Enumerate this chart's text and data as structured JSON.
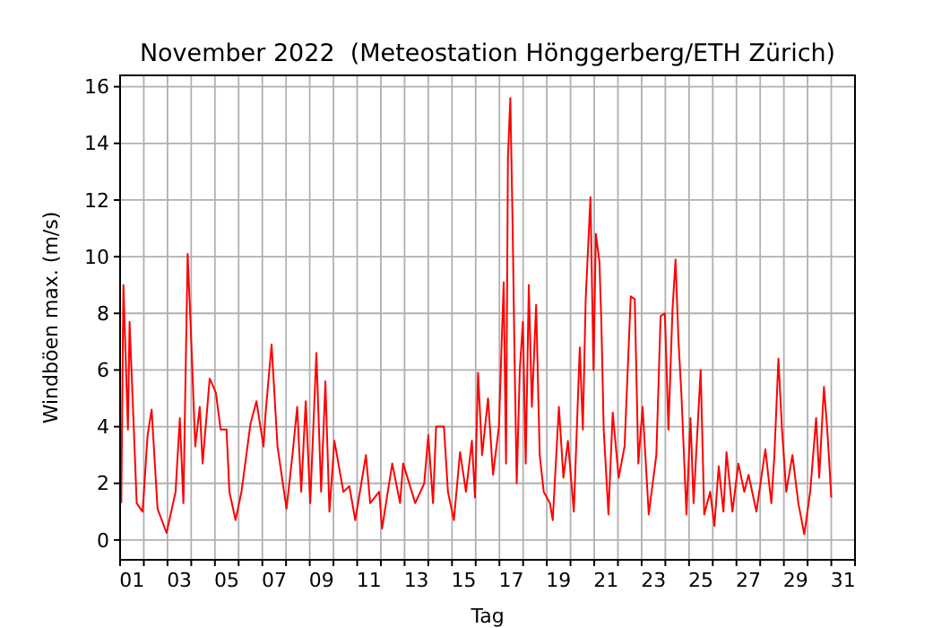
{
  "chart_data": {
    "type": "line",
    "title": "November 2022  (Meteostation Hönggerberg/ETH Zürich)",
    "xlabel": "Tag",
    "ylabel": "Windböen max. (m/s)",
    "xlim": [
      1,
      32
    ],
    "ylim": [
      -0.7,
      16.4
    ],
    "xticks": [
      {
        "value": 1,
        "label": null
      },
      {
        "value": 2,
        "label": null
      },
      {
        "value": 3,
        "label": null
      },
      {
        "value": 4,
        "label": null
      },
      {
        "value": 5,
        "label": null
      },
      {
        "value": 6,
        "label": null
      },
      {
        "value": 7,
        "label": null
      },
      {
        "value": 8,
        "label": null
      },
      {
        "value": 9,
        "label": null
      },
      {
        "value": 10,
        "label": null
      },
      {
        "value": 11,
        "label": null
      },
      {
        "value": 12,
        "label": null
      },
      {
        "value": 13,
        "label": null
      },
      {
        "value": 14,
        "label": null
      },
      {
        "value": 15,
        "label": null
      },
      {
        "value": 16,
        "label": null
      },
      {
        "value": 17,
        "label": null
      },
      {
        "value": 18,
        "label": null
      },
      {
        "value": 19,
        "label": null
      },
      {
        "value": 20,
        "label": null
      },
      {
        "value": 21,
        "label": null
      },
      {
        "value": 22,
        "label": null
      },
      {
        "value": 23,
        "label": null
      },
      {
        "value": 24,
        "label": null
      },
      {
        "value": 25,
        "label": null
      },
      {
        "value": 26,
        "label": null
      },
      {
        "value": 27,
        "label": null
      },
      {
        "value": 28,
        "label": null
      },
      {
        "value": 29,
        "label": null
      },
      {
        "value": 30,
        "label": null
      },
      {
        "value": 31,
        "label": null
      },
      {
        "value": 32,
        "label": null
      },
      {
        "value": 1.5,
        "label": "01"
      },
      {
        "value": 3.5,
        "label": "03"
      },
      {
        "value": 5.5,
        "label": "05"
      },
      {
        "value": 7.5,
        "label": "07"
      },
      {
        "value": 9.5,
        "label": "09"
      },
      {
        "value": 11.5,
        "label": "11"
      },
      {
        "value": 13.5,
        "label": "13"
      },
      {
        "value": 15.5,
        "label": "15"
      },
      {
        "value": 17.5,
        "label": "17"
      },
      {
        "value": 19.5,
        "label": "19"
      },
      {
        "value": 21.5,
        "label": "21"
      },
      {
        "value": 23.5,
        "label": "23"
      },
      {
        "value": 25.5,
        "label": "25"
      },
      {
        "value": 27.5,
        "label": "27"
      },
      {
        "value": 29.5,
        "label": "29"
      },
      {
        "value": 31.5,
        "label": "31"
      }
    ],
    "yticks": [
      0,
      2,
      4,
      6,
      8,
      10,
      12,
      14,
      16
    ],
    "grid": true,
    "marker": "none",
    "line_style": "solid",
    "series": [
      {
        "color": "#ff0000",
        "x": [
          1.05,
          1.14,
          1.33,
          1.4,
          1.58,
          1.7,
          1.95,
          2.16,
          2.33,
          2.58,
          2.96,
          3.34,
          3.52,
          3.67,
          3.85,
          3.98,
          4.17,
          4.36,
          4.48,
          4.78,
          5.04,
          5.24,
          5.49,
          5.61,
          5.87,
          6.12,
          6.5,
          6.75,
          7.05,
          7.13,
          7.39,
          7.64,
          8.02,
          8.27,
          8.47,
          8.64,
          8.83,
          9.02,
          9.28,
          9.48,
          9.66,
          9.83,
          10.04,
          10.42,
          10.67,
          10.92,
          11.37,
          11.55,
          11.93,
          12.05,
          12.48,
          12.81,
          12.94,
          13.45,
          13.83,
          14.0,
          14.2,
          14.33,
          14.66,
          14.83,
          15.08,
          15.34,
          15.59,
          15.84,
          15.97,
          16.1,
          16.27,
          16.52,
          16.73,
          16.98,
          17.18,
          17.28,
          17.36,
          17.46,
          17.56,
          17.64,
          17.73,
          17.86,
          17.99,
          18.11,
          18.24,
          18.37,
          18.55,
          18.7,
          18.87,
          19.13,
          19.25,
          19.51,
          19.7,
          19.89,
          20.14,
          20.39,
          20.52,
          20.64,
          20.84,
          20.97,
          21.07,
          21.22,
          21.3,
          21.4,
          21.6,
          21.78,
          22.03,
          22.28,
          22.54,
          22.71,
          22.86,
          23.04,
          23.3,
          23.42,
          23.62,
          23.8,
          23.98,
          24.13,
          24.3,
          24.43,
          24.55,
          24.68,
          24.89,
          25.06,
          25.19,
          25.49,
          25.64,
          25.89,
          26.07,
          26.25,
          26.45,
          26.58,
          26.83,
          27.08,
          27.33,
          27.51,
          27.84,
          28.22,
          28.47,
          28.6,
          28.77,
          28.92,
          29.1,
          29.36,
          29.61,
          29.86,
          30.11,
          30.36,
          30.49,
          30.69,
          30.83,
          31.0
        ],
        "values": [
          1.3,
          9.0,
          3.9,
          7.7,
          3.9,
          1.3,
          1.0,
          3.7,
          4.6,
          1.1,
          0.25,
          1.7,
          4.3,
          1.3,
          10.1,
          7.5,
          3.3,
          4.7,
          2.7,
          5.7,
          5.2,
          3.9,
          3.9,
          1.7,
          0.7,
          1.7,
          4.1,
          4.9,
          3.3,
          4.4,
          6.9,
          3.3,
          1.1,
          3.0,
          4.7,
          1.7,
          4.9,
          1.3,
          6.6,
          1.7,
          5.6,
          1.0,
          3.5,
          1.7,
          1.9,
          0.7,
          3.0,
          1.3,
          1.7,
          0.4,
          2.7,
          1.3,
          2.7,
          1.3,
          2.0,
          3.7,
          1.3,
          4.0,
          4.0,
          1.7,
          0.7,
          3.1,
          1.7,
          3.5,
          1.5,
          5.9,
          3.0,
          5.0,
          2.3,
          4.0,
          9.1,
          2.7,
          13.5,
          15.6,
          11.0,
          6.4,
          2.0,
          6.0,
          7.7,
          2.7,
          9.0,
          4.7,
          8.3,
          3.0,
          1.7,
          1.3,
          0.7,
          4.7,
          2.2,
          3.5,
          1.0,
          6.8,
          3.9,
          8.5,
          12.1,
          6.0,
          10.8,
          9.8,
          7.7,
          3.9,
          0.9,
          4.5,
          2.2,
          3.3,
          8.6,
          8.5,
          2.7,
          4.7,
          0.9,
          1.7,
          3.0,
          7.9,
          8.0,
          3.9,
          8.1,
          9.9,
          7.1,
          5.1,
          0.9,
          4.3,
          1.3,
          6.0,
          0.9,
          1.7,
          0.5,
          2.6,
          1.0,
          3.1,
          1.0,
          2.7,
          1.7,
          2.3,
          1.0,
          3.2,
          1.3,
          3.0,
          6.4,
          3.9,
          1.7,
          3.0,
          1.3,
          0.2,
          1.7,
          4.3,
          2.2,
          5.4,
          3.9,
          1.5
        ]
      }
    ]
  }
}
